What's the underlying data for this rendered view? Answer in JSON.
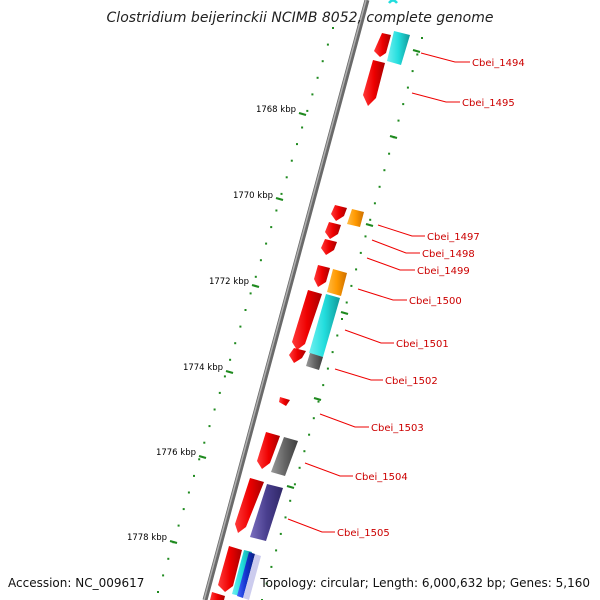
{
  "title": "Clostridium beijerinckii NCIMB 8052, complete genome",
  "footer": {
    "accession": "Accession: NC_009617",
    "summary": "Topology: circular; Length: 6,000,632 bp; Genes: 5,160"
  },
  "ticks": [
    "1768 kbp",
    "1770 kbp",
    "1772 kbp",
    "1774 kbp",
    "1776 kbp",
    "1778 kbp"
  ],
  "genes": [
    {
      "label": "Cbei_1494"
    },
    {
      "label": "Cbei_1495"
    },
    {
      "label": "Cbei_1497"
    },
    {
      "label": "Cbei_1498"
    },
    {
      "label": "Cbei_1499"
    },
    {
      "label": "Cbei_1500"
    },
    {
      "label": "Cbei_1501"
    },
    {
      "label": "Cbei_1502"
    },
    {
      "label": "Cbei_1503"
    },
    {
      "label": "Cbei_1504"
    },
    {
      "label": "Cbei_1505"
    }
  ],
  "colors": {
    "cds": "#ee0000",
    "cog_orange": "#ff9900",
    "cog_cyan": "#22dddd",
    "cog_gray": "#666666",
    "cog_purple": "#4a3f8f",
    "cog_blue": "#1133cc",
    "backbone": "#808080",
    "dots": "#1f8a1f",
    "leader": "#ee0000"
  }
}
